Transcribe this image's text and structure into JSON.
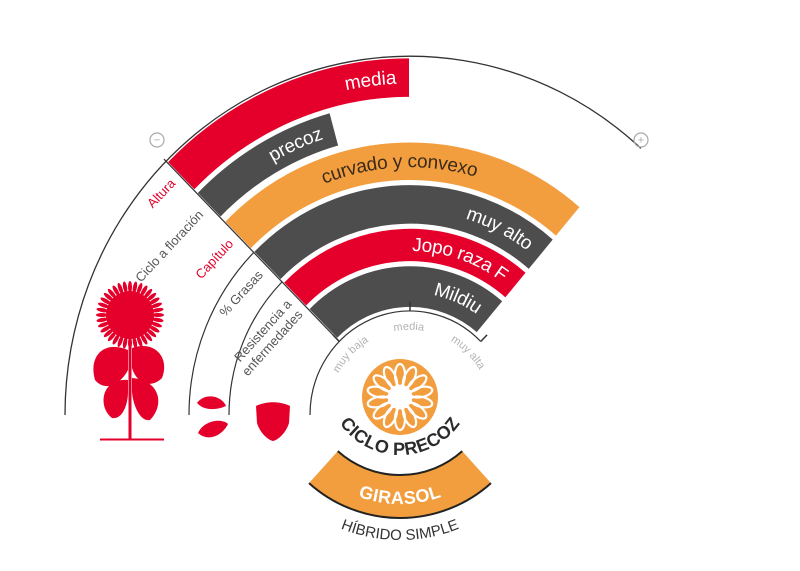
{
  "scale_signs": {
    "minus": "−",
    "plus": "+"
  },
  "scale": {
    "labels": [
      "muy baja",
      "media",
      "muy alta"
    ]
  },
  "traits": [
    {
      "label": [
        "Altura"
      ],
      "value": "media",
      "level": 0.5,
      "color": "#e4002b",
      "text_color": "#ffffff",
      "label_color": "#e4002b"
    },
    {
      "label": [
        "Ciclo a floración"
      ],
      "value": "precoz",
      "level": 0.33,
      "color": "#4d4d4d",
      "text_color": "#ffffff",
      "label_color": "#555555"
    },
    {
      "label": [
        "Capítulo"
      ],
      "value": "curvado y convexo",
      "level": 0.95,
      "color": "#f29e3f",
      "text_color": "#3a2a1a",
      "label_color": "#e4002b"
    },
    {
      "label": [
        "% Grasas"
      ],
      "value": "muy alto",
      "level": 0.95,
      "color": "#4d4d4d",
      "text_color": "#ffffff",
      "label_color": "#555555"
    },
    {
      "label": [
        "Resistencia a",
        "enfermedades"
      ],
      "value": "Jopo raza F",
      "level": 0.95,
      "color": "#e4002b",
      "text_color": "#ffffff",
      "label_color": "#555555"
    },
    {
      "label": [],
      "value": "Mildiu",
      "level": 0.95,
      "color": "#4d4d4d",
      "text_color": "#ffffff",
      "label_color": "#555555"
    }
  ],
  "product": {
    "cycle": "CICLO PRECOZ",
    "crop": "GIRASOL",
    "type": "HÍBRIDO SIMPLE"
  },
  "colors": {
    "red": "#e4002b",
    "dark": "#4d4d4d",
    "orange": "#f29e3f",
    "line": "#333333",
    "muted": "#b3b3b3"
  },
  "icons": [
    "sunflower-plant-icon",
    "seeds-icon",
    "shield-icon",
    "sunflower-logo-icon"
  ]
}
